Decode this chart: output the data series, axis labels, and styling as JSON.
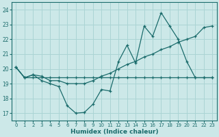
{
  "xlabel": "Humidex (Indice chaleur)",
  "bg_color": "#cce8e8",
  "line_color": "#1a6b6b",
  "grid_color": "#aad4d4",
  "xlim": [
    -0.5,
    23.5
  ],
  "ylim": [
    16.5,
    24.5
  ],
  "xticks": [
    0,
    1,
    2,
    3,
    4,
    5,
    6,
    7,
    8,
    9,
    10,
    11,
    12,
    13,
    14,
    15,
    16,
    17,
    18,
    19,
    20,
    21,
    22,
    23
  ],
  "yticks": [
    17,
    18,
    19,
    20,
    21,
    22,
    23,
    24
  ],
  "series1_y": [
    20.1,
    19.4,
    19.6,
    19.2,
    19.0,
    18.8,
    17.5,
    17.0,
    17.05,
    17.6,
    18.6,
    18.5,
    20.5,
    21.6,
    20.4,
    22.9,
    22.2,
    23.8,
    22.9,
    22.0,
    20.5,
    19.4,
    19.4,
    19.4
  ],
  "series2_y": [
    20.1,
    19.4,
    19.6,
    19.5,
    19.2,
    19.2,
    19.0,
    19.0,
    19.0,
    19.2,
    19.5,
    19.7,
    20.0,
    20.3,
    20.5,
    20.8,
    21.0,
    21.3,
    21.5,
    21.8,
    22.0,
    22.2,
    22.8,
    22.9
  ],
  "series3_y": [
    20.1,
    19.4,
    19.4,
    19.4,
    19.4,
    19.4,
    19.4,
    19.4,
    19.4,
    19.4,
    19.4,
    19.4,
    19.4,
    19.4,
    19.4,
    19.4,
    19.4,
    19.4,
    19.4,
    19.4,
    19.4,
    19.4,
    19.4,
    19.4
  ]
}
